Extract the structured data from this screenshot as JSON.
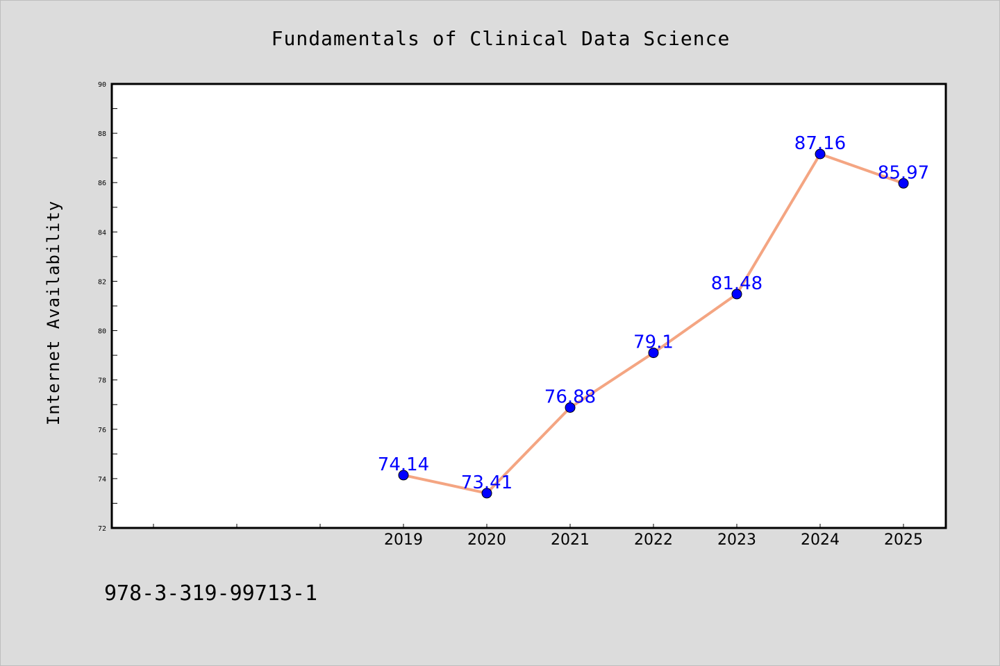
{
  "chart_data": {
    "type": "line",
    "title": "Fundamentals of Clinical Data Science",
    "xlabel": "",
    "ylabel": "Internet Availability",
    "categories": [
      "2019",
      "2020",
      "2021",
      "2022",
      "2023",
      "2024",
      "2025"
    ],
    "series": [
      {
        "values": [
          74.14,
          73.41,
          76.88,
          79.1,
          81.48,
          87.16,
          85.97
        ],
        "data_labels": [
          "74.14",
          "73.41",
          "76.88",
          "79.1",
          "81.48",
          "87.16",
          "85.97"
        ]
      }
    ],
    "ylim": [
      72,
      90
    ],
    "y_ticks": [
      "72",
      "74",
      "76",
      "78",
      "80",
      "82",
      "84",
      "86",
      "88",
      "90"
    ],
    "grid": false,
    "legend": "none",
    "colors": {
      "background": "#dcdcdc",
      "plot_background": "#ffffff",
      "line": "#f4a582",
      "marker": "#0000ff",
      "data_label": "#0000ff",
      "axis": "#000000"
    }
  },
  "footer": {
    "code": "978-3-319-99713-1"
  }
}
